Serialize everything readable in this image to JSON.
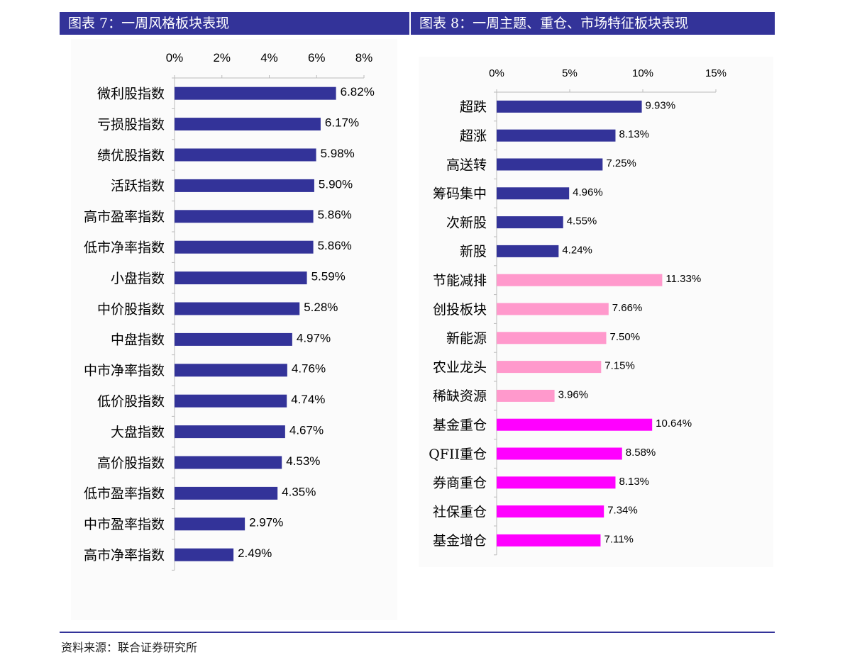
{
  "header": {
    "left_title": "图表 7：一周风格板块表现",
    "right_title": "图表 8：一周主题、重仓、市场特征板块表现"
  },
  "footer": {
    "source": "资料来源：联合证券研究所"
  },
  "chart_data": [
    {
      "type": "bar",
      "orientation": "horizontal",
      "xlim": [
        0,
        8
      ],
      "ticks": [
        "0%",
        "2%",
        "4%",
        "6%",
        "8%"
      ],
      "tick_values": [
        0,
        2,
        4,
        6,
        8
      ],
      "grid": false,
      "categories": [
        "微利股指数",
        "亏损股指数",
        "绩优股指数",
        "活跃指数",
        "高市盈率指数",
        "低市净率指数",
        "小盘指数",
        "中价股指数",
        "中盘指数",
        "中市净率指数",
        "低价股指数",
        "大盘指数",
        "高价股指数",
        "低市盈率指数",
        "中市盈率指数",
        "高市净率指数"
      ],
      "values": [
        6.82,
        6.17,
        5.98,
        5.9,
        5.86,
        5.86,
        5.59,
        5.28,
        4.97,
        4.76,
        4.74,
        4.67,
        4.53,
        4.35,
        2.97,
        2.49
      ],
      "labels": [
        "6.82%",
        "6.17%",
        "5.98%",
        "5.90%",
        "5.86%",
        "5.86%",
        "5.59%",
        "5.28%",
        "4.97%",
        "4.76%",
        "4.74%",
        "4.67%",
        "4.53%",
        "4.35%",
        "2.97%",
        "2.49%"
      ],
      "colors": [
        "#333399",
        "#333399",
        "#333399",
        "#333399",
        "#333399",
        "#333399",
        "#333399",
        "#333399",
        "#333399",
        "#333399",
        "#333399",
        "#333399",
        "#333399",
        "#333399",
        "#333399",
        "#333399"
      ]
    },
    {
      "type": "bar",
      "orientation": "horizontal",
      "xlim": [
        0,
        15
      ],
      "ticks": [
        "0%",
        "5%",
        "10%",
        "15%"
      ],
      "tick_values": [
        0,
        5,
        10,
        15
      ],
      "grid": false,
      "categories": [
        "超跌",
        "超涨",
        "高送转",
        "筹码集中",
        "次新股",
        "新股",
        "节能减排",
        "创投板块",
        "新能源",
        "农业龙头",
        "稀缺资源",
        "基金重仓",
        "QFII重仓",
        "券商重仓",
        "社保重仓",
        "基金增仓"
      ],
      "values": [
        9.93,
        8.13,
        7.25,
        4.96,
        4.55,
        4.24,
        11.33,
        7.66,
        7.5,
        7.15,
        3.96,
        10.64,
        8.58,
        8.13,
        7.34,
        7.11
      ],
      "labels": [
        "9.93%",
        "8.13%",
        "7.25%",
        "4.96%",
        "4.55%",
        "4.24%",
        "11.33%",
        "7.66%",
        "7.50%",
        "7.15%",
        "3.96%",
        "10.64%",
        "8.58%",
        "8.13%",
        "7.34%",
        "7.11%"
      ],
      "colors": [
        "#333399",
        "#333399",
        "#333399",
        "#333399",
        "#333399",
        "#333399",
        "#ff99cc",
        "#ff99cc",
        "#ff99cc",
        "#ff99cc",
        "#ff99cc",
        "#ff00ff",
        "#ff00ff",
        "#ff00ff",
        "#ff00ff",
        "#ff00ff"
      ]
    }
  ]
}
